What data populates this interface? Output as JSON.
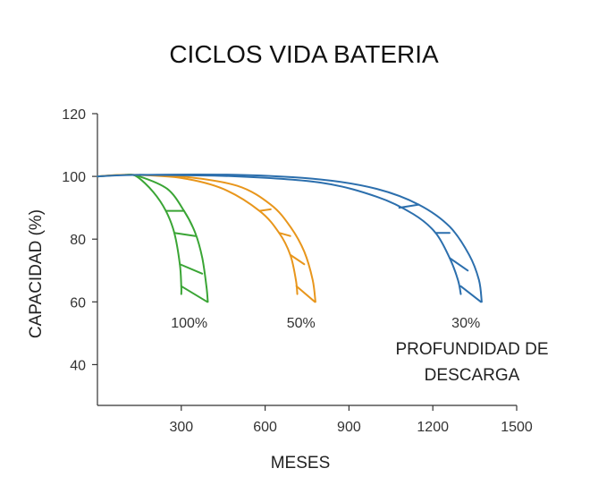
{
  "chart_data": {
    "type": "line",
    "title": "CICLOS VIDA BATERIA",
    "xlabel": "MESES",
    "ylabel": "CAPACIDAD (%)",
    "xlim": [
      0,
      1500
    ],
    "ylim": [
      27,
      120
    ],
    "x_ticks": [
      300,
      600,
      900,
      1200,
      1500
    ],
    "y_ticks": [
      40,
      60,
      80,
      100,
      120
    ],
    "grid": false,
    "annotation": [
      "PROFUNDIDAD DE",
      "DESCARGA"
    ],
    "series": [
      {
        "name": "100%",
        "color": "#3aa535",
        "outer": [
          [
            0,
            100
          ],
          [
            100,
            100.5
          ],
          [
            150,
            100
          ],
          [
            250,
            96
          ],
          [
            310,
            89
          ],
          [
            350,
            82
          ],
          [
            375,
            74
          ],
          [
            390,
            65
          ],
          [
            395,
            60
          ]
        ],
        "inner": [
          [
            100,
            100.5
          ],
          [
            140,
            100
          ],
          [
            200,
            95
          ],
          [
            245,
            89
          ],
          [
            275,
            82
          ],
          [
            295,
            72
          ],
          [
            300,
            65
          ],
          [
            300,
            62.5
          ]
        ],
        "hatches": [
          [
            [
              245,
              89
            ],
            [
              310,
              89
            ]
          ],
          [
            [
              275,
              82
            ],
            [
              350,
              81
            ]
          ],
          [
            [
              295,
              72
            ],
            [
              375,
              69
            ]
          ],
          [
            [
              300,
              65
            ],
            [
              393,
              60
            ]
          ]
        ]
      },
      {
        "name": "50%",
        "color": "#e8961c",
        "outer": [
          [
            0,
            100
          ],
          [
            100,
            100.5
          ],
          [
            300,
            100
          ],
          [
            500,
            97
          ],
          [
            620,
            91
          ],
          [
            690,
            84
          ],
          [
            740,
            76
          ],
          [
            770,
            67
          ],
          [
            780,
            60
          ]
        ],
        "inner": [
          [
            140,
            100.5
          ],
          [
            300,
            99.5
          ],
          [
            450,
            96
          ],
          [
            580,
            89
          ],
          [
            650,
            82
          ],
          [
            690,
            75
          ],
          [
            710,
            67
          ],
          [
            715,
            62.5
          ]
        ],
        "hatches": [
          [
            [
              580,
              89
            ],
            [
              620,
              89.5
            ]
          ],
          [
            [
              650,
              82
            ],
            [
              690,
              81
            ]
          ],
          [
            [
              690,
              75
            ],
            [
              740,
              72
            ]
          ],
          [
            [
              712,
              65
            ],
            [
              778,
              60
            ]
          ]
        ]
      },
      {
        "name": "30%",
        "color": "#2c6fad",
        "outer": [
          [
            0,
            100
          ],
          [
            150,
            100.5
          ],
          [
            500,
            100.5
          ],
          [
            800,
            99
          ],
          [
            1000,
            96
          ],
          [
            1150,
            91
          ],
          [
            1260,
            84
          ],
          [
            1330,
            75
          ],
          [
            1365,
            67
          ],
          [
            1375,
            60
          ]
        ],
        "inner": [
          [
            150,
            100.5
          ],
          [
            500,
            100
          ],
          [
            800,
            98
          ],
          [
            1000,
            93.5
          ],
          [
            1130,
            88
          ],
          [
            1210,
            82
          ],
          [
            1260,
            74
          ],
          [
            1290,
            67
          ],
          [
            1300,
            62.5
          ]
        ],
        "hatches": [
          [
            [
              1080,
              90
            ],
            [
              1150,
              91
            ]
          ],
          [
            [
              1210,
              82
            ],
            [
              1260,
              82
            ]
          ],
          [
            [
              1260,
              74
            ],
            [
              1325,
              70
            ]
          ],
          [
            [
              1300,
              65
            ],
            [
              1372,
              60
            ]
          ]
        ]
      }
    ]
  }
}
